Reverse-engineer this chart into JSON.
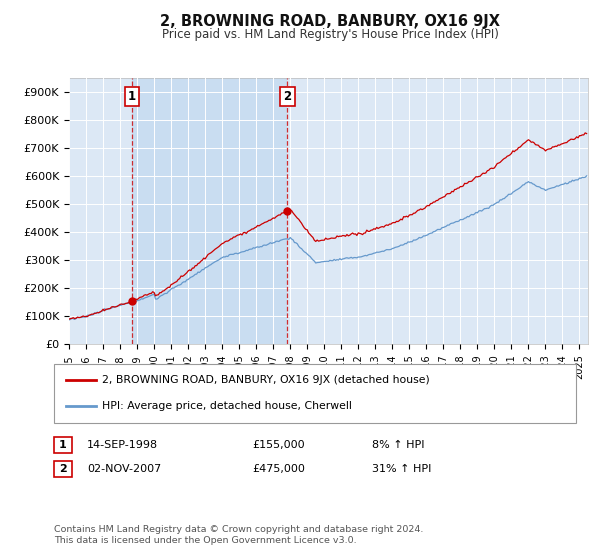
{
  "title": "2, BROWNING ROAD, BANBURY, OX16 9JX",
  "subtitle": "Price paid vs. HM Land Registry's House Price Index (HPI)",
  "plot_bg_color": "#dce8f5",
  "ylim": [
    0,
    950000
  ],
  "yticks": [
    0,
    100000,
    200000,
    300000,
    400000,
    500000,
    600000,
    700000,
    800000,
    900000
  ],
  "ytick_labels": [
    "£0",
    "£100K",
    "£200K",
    "£300K",
    "£400K",
    "£500K",
    "£600K",
    "£700K",
    "£800K",
    "£900K"
  ],
  "sale1_date": 1998.71,
  "sale1_price": 155000,
  "sale1_label": "1",
  "sale1_date_str": "14-SEP-1998",
  "sale1_price_str": "£155,000",
  "sale1_hpi_str": "8% ↑ HPI",
  "sale2_date": 2007.84,
  "sale2_price": 475000,
  "sale2_label": "2",
  "sale2_date_str": "02-NOV-2007",
  "sale2_price_str": "£475,000",
  "sale2_hpi_str": "31% ↑ HPI",
  "line1_color": "#cc0000",
  "line2_color": "#6699cc",
  "shade_color": "#dce8f5",
  "legend1_label": "2, BROWNING ROAD, BANBURY, OX16 9JX (detached house)",
  "legend2_label": "HPI: Average price, detached house, Cherwell",
  "footer": "Contains HM Land Registry data © Crown copyright and database right 2024.\nThis data is licensed under the Open Government Licence v3.0.",
  "xmin": 1995.0,
  "xmax": 2025.5
}
